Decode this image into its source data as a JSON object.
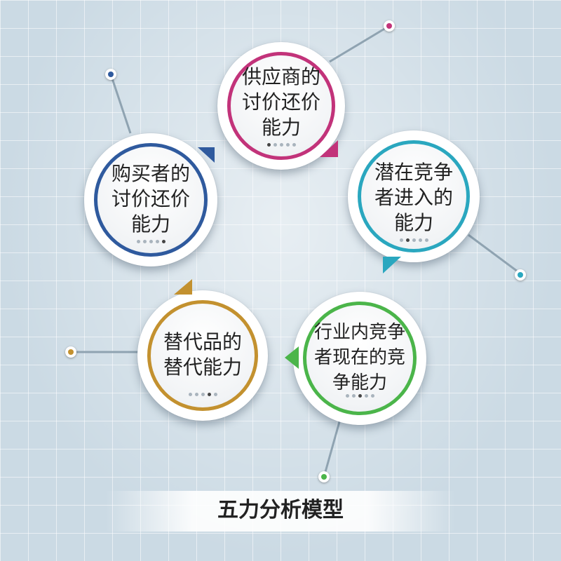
{
  "title": "五力分析模型",
  "forces": [
    {
      "key": "supplier",
      "label": "供应商的\n讨价还价\n能力",
      "color": "#c2337a",
      "dots_active": 0
    },
    {
      "key": "entrants",
      "label": "潜在竞争\n者进入的\n能力",
      "color": "#2aa7bf",
      "dots_active": 1
    },
    {
      "key": "rivalry",
      "label": "行业内竞争\n者现在的竞\n争能力",
      "color": "#4bb54a",
      "dots_active": 2
    },
    {
      "key": "substitutes",
      "label": "替代品的\n替代能力",
      "color": "#c3912f",
      "dots_active": 3
    },
    {
      "key": "buyers",
      "label": "购买者的\n讨价还价\n能力",
      "color": "#2f5a9e",
      "dots_active": 4
    }
  ],
  "dot_count": 5
}
